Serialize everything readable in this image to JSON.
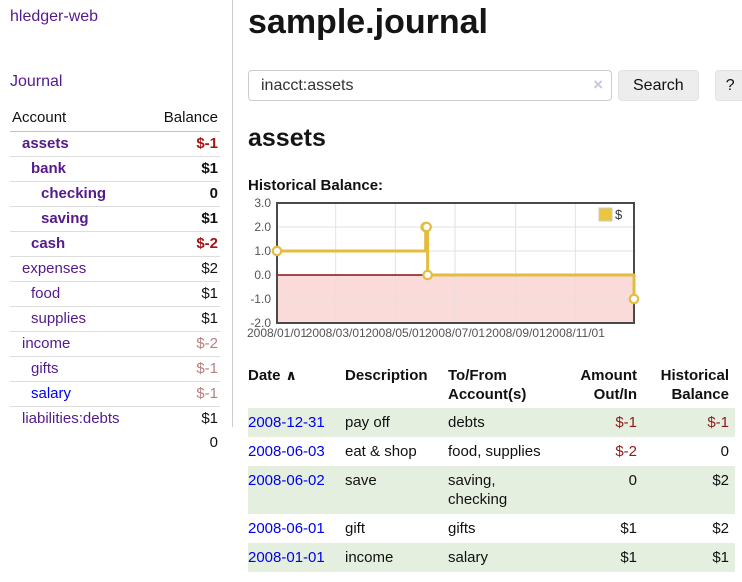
{
  "colors": {
    "visited_link": "#551a8b",
    "link": "#0000ee",
    "negative": "#8f1a1a",
    "negative_muted": "#b97e7e",
    "row_highlight": "#e4efe0",
    "chart_line": "#e3bd3f",
    "chart_negative_fill": "#fbdada",
    "chart_zero_line": "#871111"
  },
  "icons": {
    "clear": "×",
    "sort_asc": "∧",
    "help": "?"
  },
  "sidebar": {
    "brand": "hledger-web",
    "journal_link": "Journal",
    "accounts_table": {
      "headers": [
        "Account",
        "Balance"
      ],
      "rows": [
        {
          "name": "assets",
          "level": 1,
          "in_account": true,
          "balance": "$-1"
        },
        {
          "name": "bank",
          "level": 2,
          "in_account": true,
          "balance": "$1"
        },
        {
          "name": "checking",
          "level": 3,
          "in_account": true,
          "balance": "0"
        },
        {
          "name": "saving",
          "level": 3,
          "in_account": true,
          "balance": "$1"
        },
        {
          "name": "cash",
          "level": 2,
          "in_account": true,
          "balance": "$-2"
        },
        {
          "name": "expenses",
          "level": 1,
          "in_account": false,
          "balance": "$2"
        },
        {
          "name": "food",
          "level": 2,
          "in_account": false,
          "balance": "$1"
        },
        {
          "name": "supplies",
          "level": 2,
          "in_account": false,
          "balance": "$1"
        },
        {
          "name": "income",
          "level": 1,
          "in_account": false,
          "balance": "$-2"
        },
        {
          "name": "gifts",
          "level": 2,
          "in_account": false,
          "balance": "$-1"
        },
        {
          "name": "salary",
          "level": 2,
          "in_account": false,
          "balance": "$-1",
          "unvisited": true
        },
        {
          "name": "liabilities:debts",
          "level": 1,
          "in_account": false,
          "balance": "$1"
        }
      ],
      "total": "0"
    }
  },
  "header": {
    "title": "sample.journal"
  },
  "search": {
    "query": "inacct:assets",
    "button": "Search"
  },
  "account_page": {
    "heading": "assets",
    "chart_label": "Historical Balance:"
  },
  "chart_data": {
    "type": "line",
    "steps": true,
    "title": "Historical Balance:",
    "series": [
      {
        "name": "$",
        "points": [
          [
            "2008-01-01",
            1
          ],
          [
            "2008-06-01",
            2
          ],
          [
            "2008-06-02",
            2
          ],
          [
            "2008-06-03",
            0
          ],
          [
            "2008-12-31",
            -1
          ]
        ]
      }
    ],
    "xlim": [
      "2008-01-01",
      "2008-12-31"
    ],
    "ylim": [
      -2,
      3
    ],
    "y_ticks": [
      {
        "value": 3,
        "label": "3.0"
      },
      {
        "value": 2,
        "label": "2.0"
      },
      {
        "value": 1,
        "label": "1.0"
      },
      {
        "value": 0,
        "label": "0.0"
      },
      {
        "value": -1,
        "label": "-1.0"
      },
      {
        "value": -2,
        "label": "-2.0"
      }
    ],
    "x_ticks": [
      {
        "date": "2008-01-01",
        "label": "2008/01/01"
      },
      {
        "date": "2008-03-01",
        "label": "2008/03/01"
      },
      {
        "date": "2008-05-01",
        "label": "2008/05/01"
      },
      {
        "date": "2008-07-01",
        "label": "2008/07/01"
      },
      {
        "date": "2008-09-01",
        "label": "2008/09/01"
      },
      {
        "date": "2008-11-01",
        "label": "2008/11/01"
      }
    ],
    "legend": {
      "label": "$",
      "position": "top-right"
    },
    "grid": true,
    "negative_region_shaded": true
  },
  "register": {
    "headers": [
      {
        "lines": "Date",
        "align": "left",
        "sorted": "asc"
      },
      {
        "lines": "Description",
        "align": "left"
      },
      {
        "lines": "To/From\nAccount(s)",
        "align": "left"
      },
      {
        "lines": "Amount\nOut/In",
        "align": "right"
      },
      {
        "lines": "Historical\nBalance",
        "align": "right"
      }
    ],
    "rows": [
      {
        "date": "2008-12-31",
        "description": "pay off",
        "accounts": "debts",
        "amount": "$-1",
        "balance": "$-1"
      },
      {
        "date": "2008-06-03",
        "description": "eat & shop",
        "accounts": "food, supplies",
        "amount": "$-2",
        "balance": "0"
      },
      {
        "date": "2008-06-02",
        "description": "save",
        "accounts": "saving, checking",
        "amount": "0",
        "balance": "$2"
      },
      {
        "date": "2008-06-01",
        "description": "gift",
        "accounts": "gifts",
        "amount": "$1",
        "balance": "$2"
      },
      {
        "date": "2008-01-01",
        "description": "income",
        "accounts": "salary",
        "amount": "$1",
        "balance": "$1"
      }
    ]
  }
}
